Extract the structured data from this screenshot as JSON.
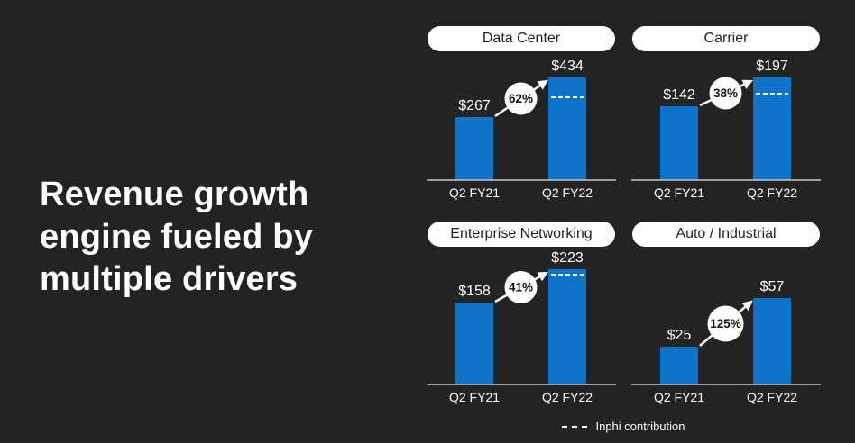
{
  "slide": {
    "title_lines": [
      "Revenue growth",
      "engine fueled by",
      "multiple drivers"
    ]
  },
  "legend": {
    "label": "Inphi contribution"
  },
  "colors": {
    "background": "#232323",
    "bar_blue": "#0d72c8",
    "pill_bg": "#ffffff",
    "pill_text": "#222222",
    "text_white": "#ffffff",
    "axis_line": "#c8c8c8",
    "badge_bg": "#ffffff",
    "badge_text": "#111111"
  },
  "chart_data": [
    {
      "type": "bar",
      "title": "Data Center",
      "categories": [
        "Q2 FY21",
        "Q2 FY22"
      ],
      "values": [
        267,
        434
      ],
      "value_labels": [
        "$267",
        "$434"
      ],
      "growth_pct": 62,
      "growth_label": "62%",
      "inphi_dash": true,
      "inphi_dash_fraction_from_top": 0.19,
      "legend_position": "none",
      "grid": false
    },
    {
      "type": "bar",
      "title": "Carrier",
      "categories": [
        "Q2 FY21",
        "Q2 FY22"
      ],
      "values": [
        142,
        197
      ],
      "value_labels": [
        "$142",
        "$197"
      ],
      "growth_pct": 38,
      "growth_label": "38%",
      "inphi_dash": true,
      "inphi_dash_fraction_from_top": 0.16,
      "legend_position": "none",
      "grid": false
    },
    {
      "type": "bar",
      "title": "Enterprise Networking",
      "categories": [
        "Q2 FY21",
        "Q2 FY22"
      ],
      "values": [
        158,
        223
      ],
      "value_labels": [
        "$158",
        "$223"
      ],
      "growth_pct": 41,
      "growth_label": "41%",
      "inphi_dash": true,
      "inphi_dash_fraction_from_top": 0.05,
      "legend_position": "none",
      "grid": false
    },
    {
      "type": "bar",
      "title": "Auto / Industrial",
      "categories": [
        "Q2 FY21",
        "Q2 FY22"
      ],
      "values": [
        25,
        57
      ],
      "value_labels": [
        "$25",
        "$57"
      ],
      "growth_pct": 125,
      "growth_label": "125%",
      "inphi_dash": false,
      "legend_position": "none",
      "grid": false
    }
  ]
}
